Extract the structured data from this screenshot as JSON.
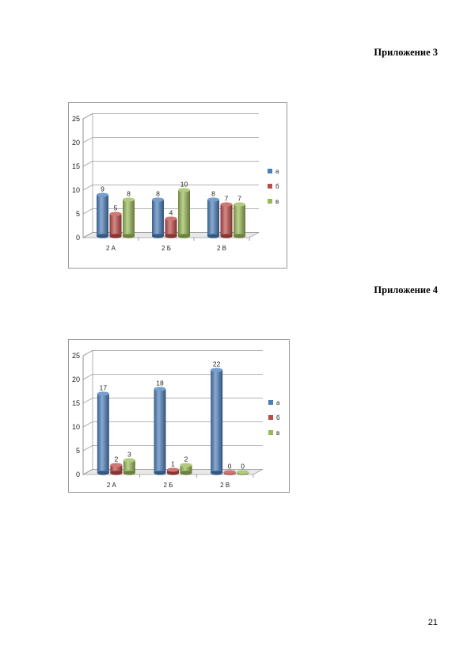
{
  "page": {
    "heading_1": "Приложение 3",
    "heading_2": "Приложение 4",
    "page_number": "21"
  },
  "colors": {
    "a": "#4a7ebb",
    "b": "#be4b48",
    "c": "#98b954"
  },
  "chart_data": [
    {
      "type": "bar",
      "categories": [
        "2 А",
        "2 Б",
        "2 В"
      ],
      "series": [
        {
          "name": "а",
          "values": [
            9,
            8,
            8
          ]
        },
        {
          "name": "б",
          "values": [
            5,
            4,
            7
          ]
        },
        {
          "name": "в",
          "values": [
            8,
            10,
            7
          ]
        }
      ],
      "ylim": [
        0,
        25
      ],
      "yticks": [
        "0",
        "5",
        "10",
        "15",
        "20",
        "25"
      ],
      "legend": "right",
      "grid": true
    },
    {
      "type": "bar",
      "categories": [
        "2 А",
        "2 Б",
        "2 В"
      ],
      "series": [
        {
          "name": "а",
          "values": [
            17,
            18,
            22
          ]
        },
        {
          "name": "б",
          "values": [
            2,
            1,
            0
          ]
        },
        {
          "name": "в",
          "values": [
            3,
            2,
            0
          ]
        }
      ],
      "ylim": [
        0,
        25
      ],
      "yticks": [
        "0",
        "5",
        "10",
        "15",
        "20",
        "25"
      ],
      "legend": "right",
      "grid": true
    }
  ]
}
